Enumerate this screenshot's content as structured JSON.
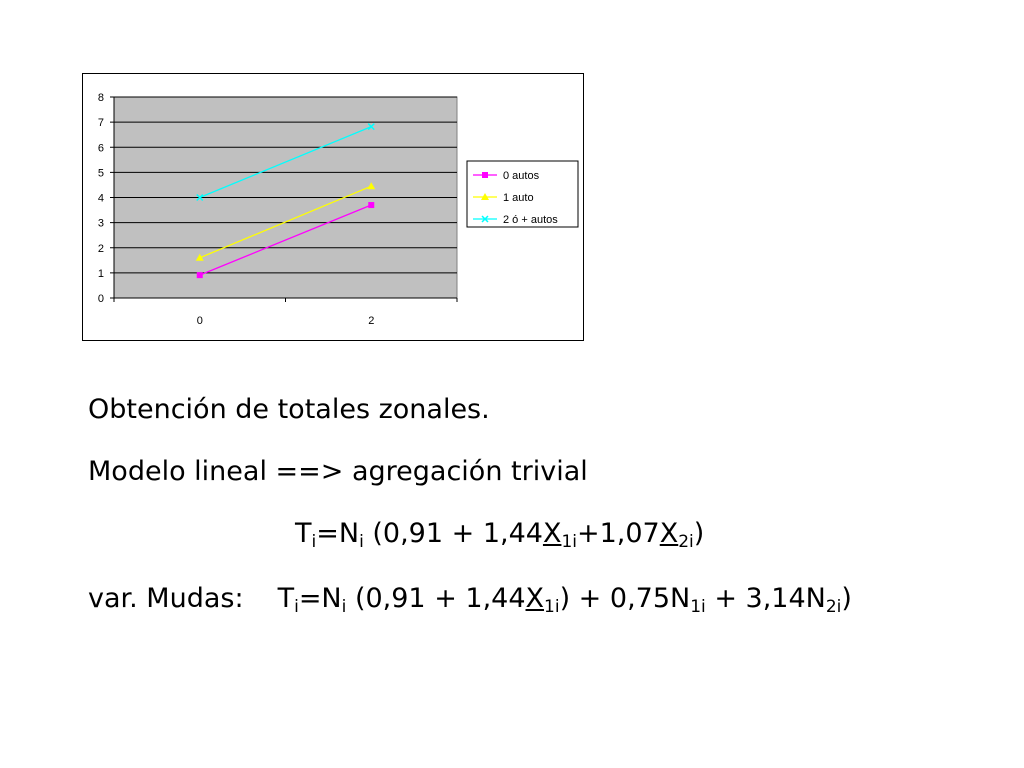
{
  "chart_data": {
    "type": "line",
    "x": [
      0,
      2
    ],
    "x_tick_labels": [
      "0",
      "2"
    ],
    "ylim": [
      0,
      8
    ],
    "y_ticks": [
      0,
      1,
      2,
      3,
      4,
      5,
      6,
      7,
      8
    ],
    "title": "",
    "xlabel": "",
    "ylabel": "",
    "grid": true,
    "legend_position": "right",
    "plot_background": "#c0c0c0",
    "series": [
      {
        "name": "0 autos",
        "values": [
          0.91,
          3.7
        ],
        "color": "#ff00ff",
        "marker": "square"
      },
      {
        "name": "1 auto",
        "values": [
          1.6,
          4.45
        ],
        "color": "#ffff00",
        "marker": "triangle"
      },
      {
        "name": "2 ó + autos",
        "values": [
          4.0,
          6.82
        ],
        "color": "#00ffff",
        "marker": "x"
      }
    ]
  },
  "text": {
    "line1": "Obtención de totales zonales.",
    "line2": "Modelo lineal ==> agregación trivial",
    "formula1": {
      "t": "T",
      "t_sub": "i",
      "eq": "=N",
      "n_sub": "i",
      "open": " (0,91 + 1,44",
      "x1": "X",
      "x1_sub": "1i",
      "mid": "+1,07",
      "x2": "X",
      "x2_sub": "2i",
      "close": ")"
    },
    "formula2": {
      "label": "var. Mudas:",
      "t": "T",
      "t_sub": "i",
      "eq": "=N",
      "n_sub": "i",
      "open": " (0,91 + 1,44",
      "x1": "X",
      "x1_sub": "1i",
      "mid": ") + 0,75N",
      "n1_sub": "1i",
      "plus": " + 3,14N",
      "n2_sub": "2i",
      "close": ")"
    }
  }
}
